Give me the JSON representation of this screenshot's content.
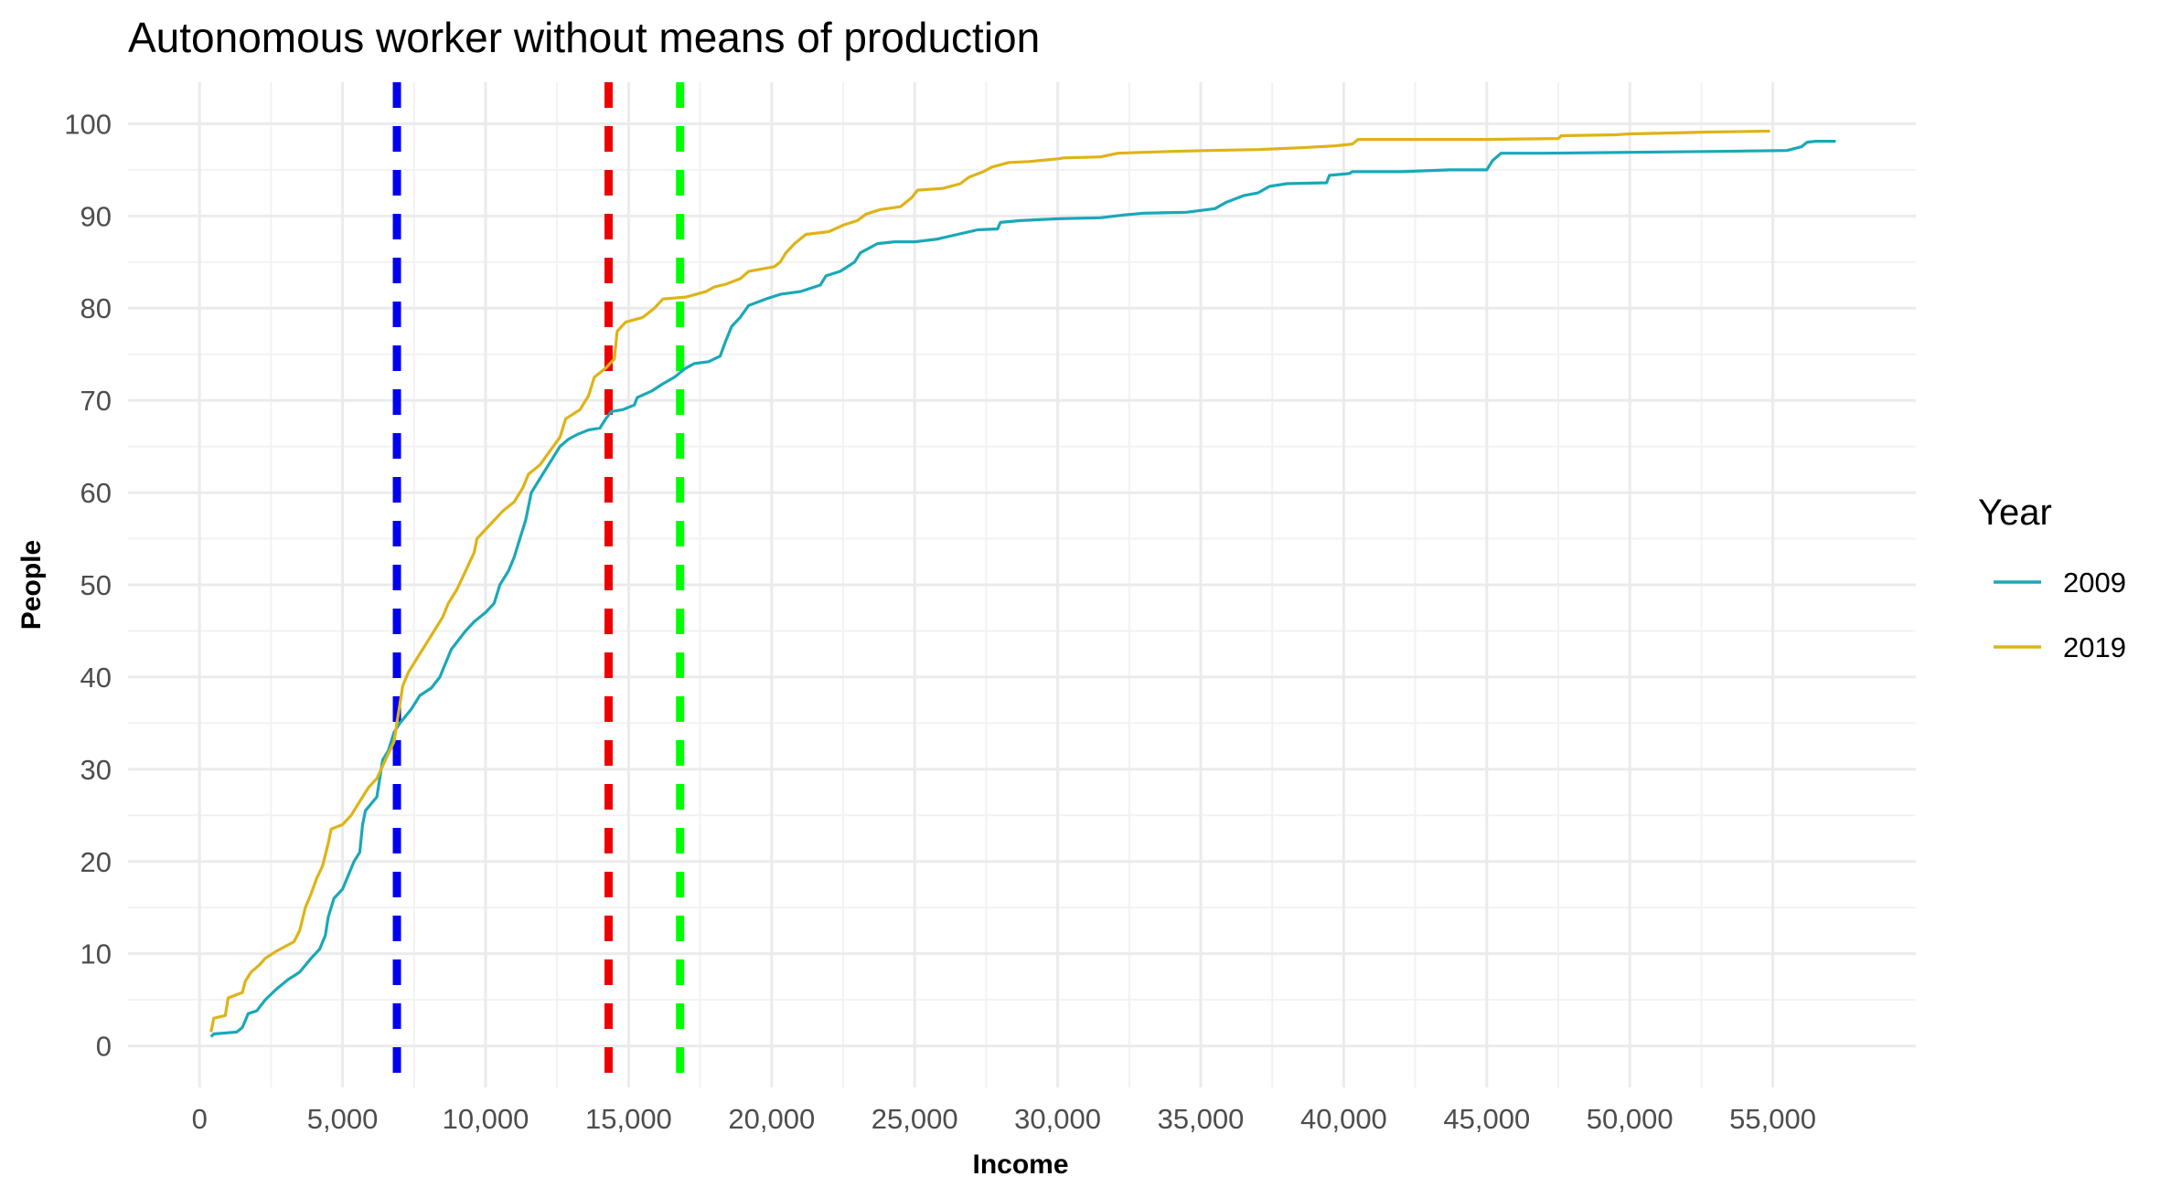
{
  "chart_data": {
    "type": "line",
    "title": "Autonomous worker without means of production",
    "xlabel": "Income",
    "ylabel": "People",
    "xlim": [
      -2500,
      60000
    ],
    "ylim": [
      -4.5,
      104.5
    ],
    "x_ticks": [
      0,
      5000,
      10000,
      15000,
      20000,
      25000,
      30000,
      35000,
      40000,
      45000,
      50000,
      55000
    ],
    "x_tick_labels": [
      "0",
      "5,000",
      "10,000",
      "15,000",
      "20,000",
      "25,000",
      "30,000",
      "35,000",
      "40,000",
      "45,000",
      "50,000",
      "55,000"
    ],
    "y_ticks": [
      0,
      10,
      20,
      30,
      40,
      50,
      60,
      70,
      80,
      90,
      100
    ],
    "y_tick_labels": [
      "0",
      "10",
      "20",
      "30",
      "40",
      "50",
      "60",
      "70",
      "80",
      "90",
      "100"
    ],
    "grid": true,
    "legend": {
      "title": "Year",
      "position": "right"
    },
    "series": [
      {
        "name": "2009",
        "color": "#1aa8b8",
        "points": [
          [
            400,
            1
          ],
          [
            500,
            1.3
          ],
          [
            1300,
            1.5
          ],
          [
            1500,
            2
          ],
          [
            1700,
            3.5
          ],
          [
            2000,
            3.8
          ],
          [
            2300,
            5
          ],
          [
            2700,
            6.2
          ],
          [
            3100,
            7.2
          ],
          [
            3500,
            8
          ],
          [
            3900,
            9.5
          ],
          [
            4200,
            10.5
          ],
          [
            4400,
            12
          ],
          [
            4500,
            14
          ],
          [
            4700,
            16
          ],
          [
            5000,
            17
          ],
          [
            5200,
            18.5
          ],
          [
            5400,
            20
          ],
          [
            5600,
            21
          ],
          [
            5700,
            24
          ],
          [
            5800,
            25.5
          ],
          [
            6200,
            27
          ],
          [
            6300,
            29
          ],
          [
            6400,
            31
          ],
          [
            6600,
            32
          ],
          [
            6800,
            34
          ],
          [
            7000,
            35
          ],
          [
            7400,
            36.5
          ],
          [
            7700,
            38
          ],
          [
            8100,
            38.8
          ],
          [
            8400,
            40
          ],
          [
            8600,
            41.5
          ],
          [
            8800,
            43
          ],
          [
            9000,
            43.8
          ],
          [
            9300,
            45
          ],
          [
            9600,
            46
          ],
          [
            10000,
            47
          ],
          [
            10300,
            48
          ],
          [
            10500,
            50
          ],
          [
            10800,
            51.5
          ],
          [
            11000,
            53
          ],
          [
            11200,
            55
          ],
          [
            11400,
            57
          ],
          [
            11600,
            60
          ],
          [
            11900,
            61.5
          ],
          [
            12300,
            63.5
          ],
          [
            12600,
            65
          ],
          [
            12900,
            65.8
          ],
          [
            13200,
            66.3
          ],
          [
            13600,
            66.8
          ],
          [
            14000,
            67
          ],
          [
            14200,
            68
          ],
          [
            14400,
            68.8
          ],
          [
            14800,
            69
          ],
          [
            15200,
            69.5
          ],
          [
            15300,
            70.3
          ],
          [
            15800,
            71
          ],
          [
            16200,
            71.8
          ],
          [
            16600,
            72.5
          ],
          [
            17000,
            73.5
          ],
          [
            17300,
            74
          ],
          [
            17800,
            74.2
          ],
          [
            18200,
            74.8
          ],
          [
            18400,
            76.5
          ],
          [
            18600,
            78
          ],
          [
            18900,
            79
          ],
          [
            19200,
            80.3
          ],
          [
            19800,
            81
          ],
          [
            20300,
            81.5
          ],
          [
            21000,
            81.8
          ],
          [
            21700,
            82.5
          ],
          [
            21900,
            83.5
          ],
          [
            22400,
            84
          ],
          [
            22900,
            85
          ],
          [
            23100,
            86
          ],
          [
            23700,
            87
          ],
          [
            24300,
            87.2
          ],
          [
            25000,
            87.2
          ],
          [
            25800,
            87.5
          ],
          [
            26500,
            88
          ],
          [
            27200,
            88.5
          ],
          [
            27900,
            88.6
          ],
          [
            28000,
            89.3
          ],
          [
            28700,
            89.5
          ],
          [
            30000,
            89.7
          ],
          [
            31500,
            89.8
          ],
          [
            32300,
            90.1
          ],
          [
            33000,
            90.3
          ],
          [
            34500,
            90.4
          ],
          [
            35500,
            90.8
          ],
          [
            35900,
            91.5
          ],
          [
            36500,
            92.2
          ],
          [
            37000,
            92.5
          ],
          [
            37400,
            93.2
          ],
          [
            38000,
            93.5
          ],
          [
            39400,
            93.6
          ],
          [
            39500,
            94.4
          ],
          [
            40200,
            94.6
          ],
          [
            40300,
            94.8
          ],
          [
            42000,
            94.8
          ],
          [
            43700,
            95.0
          ],
          [
            45000,
            95.0
          ],
          [
            45200,
            96.0
          ],
          [
            45500,
            96.8
          ],
          [
            47000,
            96.8
          ],
          [
            50000,
            96.9
          ],
          [
            53000,
            97.0
          ],
          [
            55500,
            97.1
          ],
          [
            56000,
            97.5
          ],
          [
            56200,
            98
          ],
          [
            56500,
            98.1
          ],
          [
            57200,
            98.1
          ]
        ]
      },
      {
        "name": "2019",
        "color": "#dfb317",
        "points": [
          [
            400,
            1.5
          ],
          [
            500,
            3
          ],
          [
            900,
            3.3
          ],
          [
            1000,
            5.2
          ],
          [
            1500,
            5.8
          ],
          [
            1600,
            7
          ],
          [
            1800,
            8
          ],
          [
            2100,
            8.8
          ],
          [
            2300,
            9.5
          ],
          [
            2700,
            10.3
          ],
          [
            3300,
            11.3
          ],
          [
            3500,
            12.5
          ],
          [
            3700,
            15
          ],
          [
            3900,
            16.5
          ],
          [
            4100,
            18.2
          ],
          [
            4300,
            19.5
          ],
          [
            4500,
            22
          ],
          [
            4600,
            23.5
          ],
          [
            5000,
            24
          ],
          [
            5300,
            25
          ],
          [
            5500,
            26
          ],
          [
            5700,
            27
          ],
          [
            5900,
            28
          ],
          [
            6200,
            29
          ],
          [
            6500,
            31
          ],
          [
            6800,
            33
          ],
          [
            6900,
            35
          ],
          [
            7000,
            37
          ],
          [
            7100,
            39
          ],
          [
            7300,
            40.5
          ],
          [
            7600,
            42
          ],
          [
            7900,
            43.5
          ],
          [
            8200,
            45
          ],
          [
            8500,
            46.5
          ],
          [
            8700,
            48
          ],
          [
            9000,
            49.5
          ],
          [
            9300,
            51.5
          ],
          [
            9600,
            53.5
          ],
          [
            9700,
            55
          ],
          [
            10000,
            56
          ],
          [
            10300,
            57
          ],
          [
            10600,
            58
          ],
          [
            11000,
            59
          ],
          [
            11300,
            60.5
          ],
          [
            11500,
            62
          ],
          [
            11900,
            63
          ],
          [
            12200,
            64.3
          ],
          [
            12600,
            66
          ],
          [
            12800,
            68
          ],
          [
            13300,
            69
          ],
          [
            13600,
            70.5
          ],
          [
            13800,
            72.5
          ],
          [
            14200,
            73.5
          ],
          [
            14500,
            74.5
          ],
          [
            14600,
            77.5
          ],
          [
            14900,
            78.5
          ],
          [
            15500,
            79
          ],
          [
            15900,
            80
          ],
          [
            16200,
            81
          ],
          [
            17000,
            81.2
          ],
          [
            17700,
            81.8
          ],
          [
            18000,
            82.3
          ],
          [
            18400,
            82.6
          ],
          [
            18900,
            83.2
          ],
          [
            19200,
            84
          ],
          [
            20100,
            84.5
          ],
          [
            20300,
            85
          ],
          [
            20500,
            86
          ],
          [
            20800,
            87
          ],
          [
            21200,
            88
          ],
          [
            22000,
            88.3
          ],
          [
            22500,
            89
          ],
          [
            23000,
            89.5
          ],
          [
            23300,
            90.2
          ],
          [
            23800,
            90.7
          ],
          [
            24500,
            91
          ],
          [
            24900,
            92
          ],
          [
            25100,
            92.8
          ],
          [
            26000,
            93
          ],
          [
            26600,
            93.5
          ],
          [
            26900,
            94.2
          ],
          [
            27400,
            94.8
          ],
          [
            27700,
            95.3
          ],
          [
            28300,
            95.8
          ],
          [
            29000,
            95.9
          ],
          [
            30000,
            96.2
          ],
          [
            30200,
            96.3
          ],
          [
            31500,
            96.4
          ],
          [
            32100,
            96.8
          ],
          [
            33000,
            96.9
          ],
          [
            34000,
            97.0
          ],
          [
            35300,
            97.1
          ],
          [
            37000,
            97.2
          ],
          [
            38500,
            97.4
          ],
          [
            39700,
            97.6
          ],
          [
            40300,
            97.8
          ],
          [
            40500,
            98.3
          ],
          [
            41200,
            98.3
          ],
          [
            43000,
            98.3
          ],
          [
            45000,
            98.3
          ],
          [
            47500,
            98.4
          ],
          [
            47600,
            98.7
          ],
          [
            49500,
            98.8
          ],
          [
            50000,
            98.9
          ],
          [
            51500,
            99.0
          ],
          [
            52700,
            99.1
          ],
          [
            54900,
            99.2
          ]
        ]
      }
    ],
    "reference_lines": [
      {
        "x": 6900,
        "color": "#0000ee"
      },
      {
        "x": 14300,
        "color": "#ee0000"
      },
      {
        "x": 16800,
        "color": "#00ff00"
      }
    ]
  }
}
